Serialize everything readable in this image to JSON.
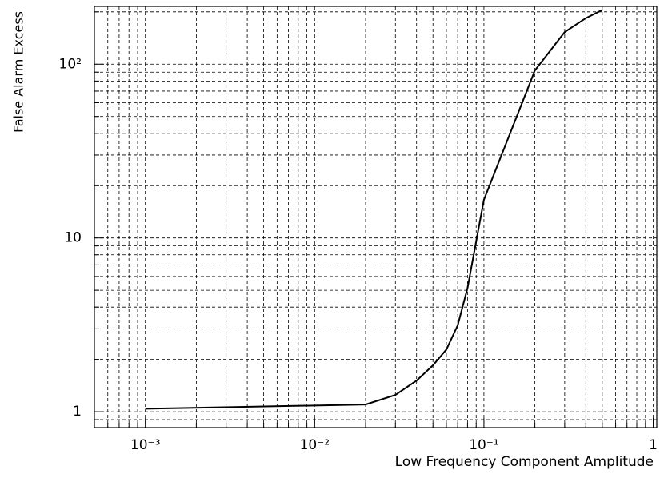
{
  "chart_data": {
    "type": "line",
    "x_label": "Low Frequency Component Amplitude",
    "y_label": "False Alarm Excess",
    "x": [
      0.001,
      0.02,
      0.03,
      0.04,
      0.05,
      0.06,
      0.07,
      0.08,
      0.1,
      0.2,
      0.3,
      0.4,
      0.5
    ],
    "series": [
      {
        "color": "#000000",
        "values": [
          1.04,
          1.1,
          1.25,
          1.51,
          1.85,
          2.28,
          3.14,
          5.15,
          16.6,
          92,
          153,
          184,
          205
        ]
      }
    ],
    "xlim": [
      0.0005,
      1.05
    ],
    "ylim": [
      0.81,
      215
    ],
    "xlog": true,
    "ylog": true,
    "grid": true,
    "xticks": [
      {
        "value": 0.001,
        "label": "10⁻³"
      },
      {
        "value": 0.01,
        "label": "10⁻²"
      },
      {
        "value": 0.1,
        "label": "10⁻¹"
      },
      1
    ],
    "yticks": [
      1,
      10,
      {
        "value": 100,
        "label": "10²"
      }
    ],
    "x_minor_ticks": [
      0.0005,
      0.0006,
      0.0007,
      0.0008,
      0.0009,
      0.002,
      0.003,
      0.004,
      0.005,
      0.006,
      0.007,
      0.008,
      0.009,
      0.02,
      0.03,
      0.04,
      0.05,
      0.06,
      0.07,
      0.08,
      0.09,
      0.2,
      0.3,
      0.4,
      0.5,
      0.6,
      0.7,
      0.8,
      0.9
    ],
    "y_minor_ticks": [
      0.9,
      2,
      3,
      4,
      5,
      6,
      7,
      8,
      9,
      20,
      30,
      40,
      50,
      60,
      70,
      80,
      90,
      200
    ]
  }
}
